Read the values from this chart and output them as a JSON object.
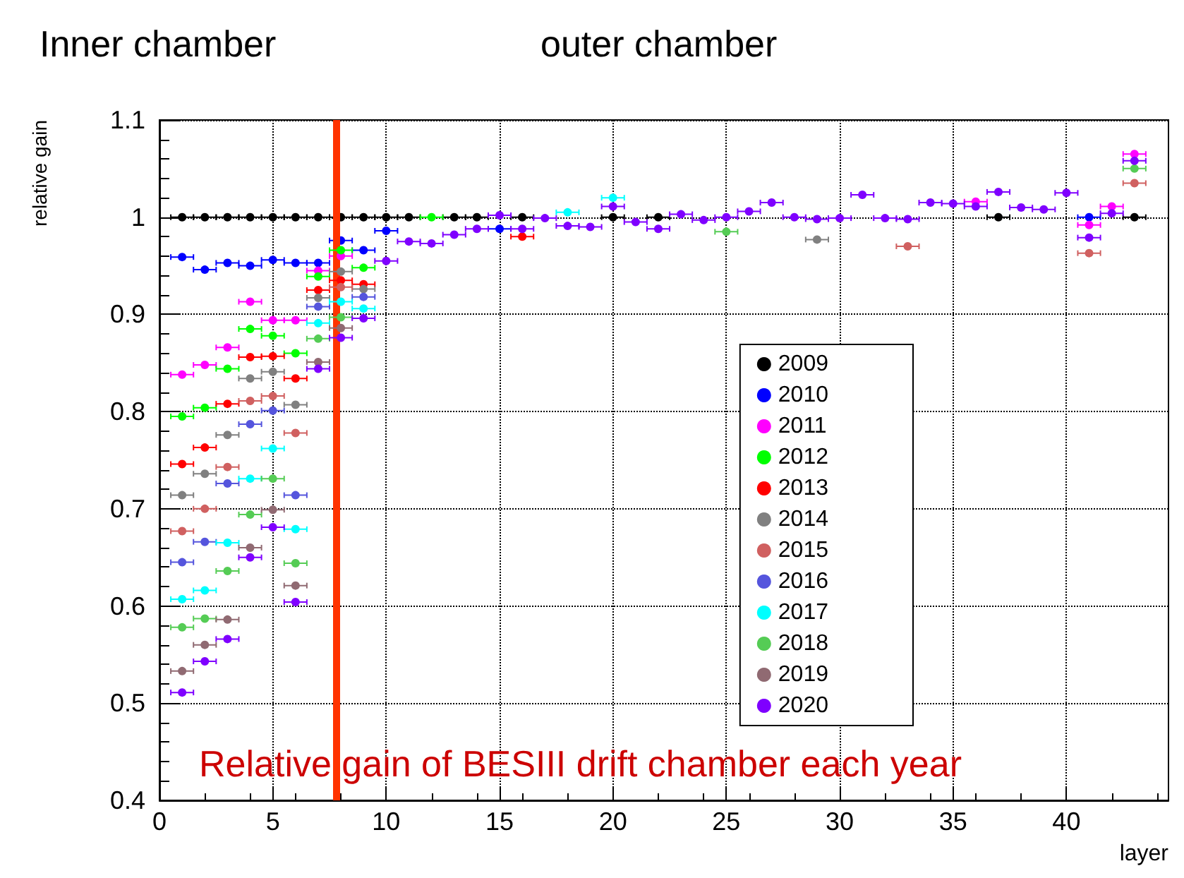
{
  "chart_data": {
    "type": "scatter",
    "annotations": [
      "Inner chamber",
      "outer chamber",
      "Relative gain of BESIII drift chamber each year"
    ],
    "xlabel": "layer",
    "ylabel": "relative gain",
    "x": [
      1,
      2,
      3,
      4,
      5,
      6,
      7,
      8,
      9,
      10,
      11,
      12,
      13,
      14,
      15,
      16,
      17,
      18,
      19,
      20,
      21,
      22,
      23,
      24,
      25,
      26,
      27,
      28,
      29,
      30,
      31,
      32,
      33,
      34,
      35,
      36,
      37,
      38,
      39,
      40,
      41,
      42,
      43
    ],
    "xlim": [
      0,
      44.5
    ],
    "xticks": [
      0,
      5,
      10,
      15,
      20,
      25,
      30,
      35,
      40
    ],
    "ylim": [
      0.4,
      1.1
    ],
    "yticks": [
      0.4,
      0.5,
      0.6,
      0.7,
      0.8,
      0.9,
      1,
      1.1
    ],
    "grid": true,
    "legend": "right",
    "marker": "circle",
    "ref_lines": [
      {
        "axis": "x",
        "value": 7.8,
        "color": "#ff3300"
      }
    ],
    "series": [
      {
        "name": "2009",
        "color": "#000000",
        "values": [
          1,
          1,
          1,
          1,
          1,
          1,
          1,
          1,
          1,
          1,
          1,
          null,
          1,
          1,
          null,
          1,
          null,
          null,
          null,
          1,
          null,
          1,
          null,
          null,
          null,
          null,
          null,
          null,
          null,
          null,
          null,
          null,
          null,
          null,
          null,
          null,
          1,
          null,
          null,
          null,
          null,
          null,
          1
        ],
        "xerrors": [
          0.5,
          0.5,
          0.5,
          0.5,
          0.5,
          0.5,
          0.5,
          0.5,
          0.5,
          0.5,
          0.5,
          null,
          0.5,
          0.5,
          null,
          0.5,
          null,
          null,
          null,
          0.5,
          null,
          0.5,
          null,
          null,
          null,
          null,
          null,
          null,
          null,
          null,
          null,
          null,
          null,
          null,
          null,
          null,
          0.5,
          null,
          null,
          null,
          null,
          null,
          0.5
        ]
      },
      {
        "name": "2010",
        "color": "#0000ff",
        "values": [
          0.959,
          0.946,
          0.953,
          0.95,
          0.956,
          0.953,
          0.953,
          0.976,
          0.966,
          0.986,
          null,
          null,
          null,
          null,
          0.988,
          null,
          null,
          null,
          null,
          null,
          null,
          null,
          null,
          null,
          null,
          null,
          null,
          null,
          null,
          null,
          null,
          null,
          null,
          null,
          null,
          null,
          null,
          null,
          null,
          null,
          1.0,
          null,
          null
        ],
        "xerrors": [
          0.5,
          0.5,
          0.5,
          0.5,
          0.5,
          0.5,
          0.5,
          0.5,
          0.5,
          0.5,
          null,
          null,
          null,
          null,
          0.5,
          null,
          null,
          null,
          null,
          null,
          null,
          null,
          null,
          null,
          null,
          null,
          null,
          null,
          null,
          null,
          null,
          null,
          null,
          null,
          null,
          null,
          null,
          null,
          null,
          null,
          0.5,
          null,
          null
        ]
      },
      {
        "name": "2011",
        "color": "#ff00ff",
        "values": [
          0.838,
          0.848,
          0.866,
          0.913,
          0.894,
          0.894,
          0.945,
          0.96,
          null,
          null,
          null,
          null,
          null,
          null,
          null,
          null,
          null,
          null,
          null,
          null,
          null,
          null,
          null,
          null,
          null,
          null,
          null,
          null,
          null,
          null,
          null,
          null,
          null,
          null,
          null,
          1.016,
          null,
          null,
          null,
          null,
          0.992,
          1.011,
          1.065
        ],
        "xerrors": [
          0.5,
          0.5,
          0.5,
          0.5,
          0.5,
          0.5,
          0.5,
          0.5,
          null,
          null,
          null,
          null,
          null,
          null,
          null,
          null,
          null,
          null,
          null,
          null,
          null,
          null,
          null,
          null,
          null,
          null,
          null,
          null,
          null,
          null,
          null,
          null,
          null,
          null,
          null,
          0.5,
          null,
          null,
          null,
          null,
          0.5,
          0.5,
          0.5
        ]
      },
      {
        "name": "2012",
        "color": "#00ff00",
        "values": [
          0.795,
          0.804,
          0.844,
          0.885,
          0.878,
          0.86,
          0.939,
          0.966,
          0.948,
          null,
          null,
          1.0,
          null,
          null,
          null,
          null,
          null,
          null,
          null,
          null,
          null,
          null,
          null,
          null,
          null,
          null,
          null,
          null,
          null,
          null,
          null,
          null,
          null,
          null,
          null,
          null,
          null,
          null,
          null,
          null,
          null,
          null,
          null
        ],
        "xerrors": [
          0.5,
          0.5,
          0.5,
          0.5,
          0.5,
          0.5,
          0.5,
          0.5,
          0.5,
          null,
          null,
          0.5,
          null,
          null,
          null,
          null,
          null,
          null,
          null,
          null,
          null,
          null,
          null,
          null,
          null,
          null,
          null,
          null,
          null,
          null,
          null,
          null,
          null,
          null,
          null,
          null,
          null,
          null,
          null,
          null,
          null,
          null,
          null
        ]
      },
      {
        "name": "2013",
        "color": "#ff0000",
        "values": [
          0.746,
          0.763,
          0.808,
          0.856,
          0.857,
          0.834,
          0.925,
          0.935,
          0.931,
          null,
          null,
          null,
          null,
          null,
          null,
          0.98,
          null,
          null,
          null,
          null,
          null,
          null,
          null,
          null,
          null,
          null,
          null,
          null,
          null,
          null,
          null,
          null,
          null,
          null,
          null,
          null,
          null,
          null,
          null,
          null,
          null,
          null,
          null
        ],
        "xerrors": [
          0.5,
          0.5,
          0.5,
          0.5,
          0.5,
          0.5,
          0.5,
          0.5,
          0.5,
          null,
          null,
          null,
          null,
          null,
          null,
          0.5,
          null,
          null,
          null,
          null,
          null,
          null,
          null,
          null,
          null,
          null,
          null,
          null,
          null,
          null,
          null,
          null,
          null,
          null,
          null,
          null,
          null,
          null,
          null,
          null,
          null,
          null,
          null
        ]
      },
      {
        "name": "2014",
        "color": "#808080",
        "values": [
          0.714,
          0.736,
          0.776,
          0.834,
          0.841,
          0.807,
          0.917,
          0.944,
          0.926,
          null,
          null,
          null,
          null,
          null,
          null,
          null,
          null,
          null,
          null,
          null,
          null,
          null,
          null,
          null,
          null,
          null,
          null,
          null,
          0.977,
          null,
          null,
          null,
          null,
          null,
          null,
          null,
          null,
          null,
          null,
          null,
          null,
          null,
          null
        ],
        "xerrors": [
          0.5,
          0.5,
          0.5,
          0.5,
          0.5,
          0.5,
          0.5,
          0.5,
          0.5,
          null,
          null,
          null,
          null,
          null,
          null,
          null,
          null,
          null,
          null,
          null,
          null,
          null,
          null,
          null,
          null,
          null,
          null,
          null,
          0.5,
          null,
          null,
          null,
          null,
          null,
          null,
          null,
          null,
          null,
          null,
          null,
          null,
          null,
          null
        ]
      },
      {
        "name": "2015",
        "color": "#d06060",
        "values": [
          0.677,
          0.7,
          0.743,
          0.811,
          0.816,
          0.778,
          null,
          0.928,
          null,
          null,
          null,
          null,
          null,
          null,
          null,
          null,
          null,
          null,
          null,
          null,
          null,
          null,
          null,
          null,
          null,
          null,
          null,
          null,
          null,
          null,
          null,
          null,
          0.97,
          null,
          null,
          null,
          null,
          null,
          null,
          null,
          0.963,
          null,
          1.035
        ],
        "xerrors": [
          0.5,
          0.5,
          0.5,
          0.5,
          0.5,
          0.5,
          null,
          0.5,
          null,
          null,
          null,
          null,
          null,
          null,
          null,
          null,
          null,
          null,
          null,
          null,
          null,
          null,
          null,
          null,
          null,
          null,
          null,
          null,
          null,
          null,
          null,
          null,
          0.5,
          null,
          null,
          null,
          null,
          null,
          null,
          null,
          0.5,
          null,
          0.5
        ]
      },
      {
        "name": "2016",
        "color": "#5555dd",
        "values": [
          0.645,
          0.666,
          0.726,
          0.787,
          0.801,
          0.714,
          0.908,
          null,
          0.918,
          null,
          null,
          null,
          null,
          null,
          null,
          null,
          null,
          null,
          null,
          null,
          null,
          null,
          null,
          null,
          null,
          null,
          null,
          null,
          null,
          null,
          null,
          null,
          null,
          null,
          null,
          null,
          null,
          null,
          null,
          null,
          null,
          null,
          null
        ],
        "xerrors": [
          0.5,
          0.5,
          0.5,
          0.5,
          0.5,
          0.5,
          0.5,
          null,
          0.5,
          null,
          null,
          null,
          null,
          null,
          null,
          null,
          null,
          null,
          null,
          null,
          null,
          null,
          null,
          null,
          null,
          null,
          null,
          null,
          null,
          null,
          null,
          null,
          null,
          null,
          null,
          null,
          null,
          null,
          null,
          null,
          null,
          null,
          null
        ]
      },
      {
        "name": "2017",
        "color": "#00ffff",
        "values": [
          0.607,
          0.616,
          0.665,
          0.731,
          0.762,
          0.679,
          0.891,
          0.913,
          0.906,
          null,
          null,
          null,
          null,
          null,
          null,
          null,
          null,
          1.005,
          null,
          1.02,
          null,
          null,
          null,
          null,
          null,
          null,
          null,
          null,
          null,
          null,
          null,
          null,
          null,
          null,
          null,
          null,
          null,
          null,
          null,
          null,
          null,
          null,
          null
        ],
        "xerrors": [
          0.5,
          0.5,
          0.5,
          0.5,
          0.5,
          0.5,
          0.5,
          0.5,
          0.5,
          null,
          null,
          null,
          null,
          null,
          null,
          null,
          null,
          0.5,
          null,
          0.5,
          null,
          null,
          null,
          null,
          null,
          null,
          null,
          null,
          null,
          null,
          null,
          null,
          null,
          null,
          null,
          null,
          null,
          null,
          null,
          null,
          null,
          null,
          null
        ]
      },
      {
        "name": "2018",
        "color": "#55cc55",
        "values": [
          0.578,
          0.587,
          0.636,
          0.694,
          0.731,
          0.644,
          0.875,
          0.897,
          null,
          null,
          null,
          null,
          null,
          null,
          null,
          null,
          null,
          null,
          null,
          null,
          null,
          null,
          null,
          null,
          0.985,
          null,
          null,
          null,
          null,
          null,
          null,
          null,
          null,
          null,
          null,
          null,
          null,
          null,
          null,
          null,
          null,
          null,
          1.05
        ],
        "xerrors": [
          0.5,
          0.5,
          0.5,
          0.5,
          0.5,
          0.5,
          0.5,
          0.5,
          null,
          null,
          null,
          null,
          null,
          null,
          null,
          null,
          null,
          null,
          null,
          null,
          null,
          null,
          null,
          null,
          0.5,
          null,
          null,
          null,
          null,
          null,
          null,
          null,
          null,
          null,
          null,
          null,
          null,
          null,
          null,
          null,
          null,
          null,
          0.5
        ]
      },
      {
        "name": "2019",
        "color": "#906a72",
        "values": [
          0.533,
          0.56,
          0.586,
          0.66,
          0.699,
          0.621,
          0.851,
          0.886,
          null,
          null,
          null,
          null,
          null,
          null,
          null,
          null,
          null,
          null,
          null,
          null,
          null,
          null,
          null,
          null,
          null,
          null,
          null,
          null,
          null,
          null,
          null,
          null,
          null,
          null,
          null,
          null,
          null,
          null,
          null,
          null,
          null,
          null,
          null
        ],
        "xerrors": [
          0.5,
          0.5,
          0.5,
          0.5,
          0.5,
          0.5,
          0.5,
          0.5,
          null,
          null,
          null,
          null,
          null,
          null,
          null,
          null,
          null,
          null,
          null,
          null,
          null,
          null,
          null,
          null,
          null,
          null,
          null,
          null,
          null,
          null,
          null,
          null,
          null,
          null,
          null,
          null,
          null,
          null,
          null,
          null,
          null,
          null,
          null
        ]
      },
      {
        "name": "2020",
        "color": "#7f00ff",
        "values": [
          0.511,
          0.543,
          0.566,
          0.65,
          0.681,
          0.604,
          0.844,
          0.876,
          0.896,
          0.955,
          0.975,
          0.973,
          0.982,
          0.988,
          1.002,
          0.988,
          0.999,
          0.991,
          0.99,
          1.011,
          0.995,
          0.988,
          1.003,
          0.997,
          1.0,
          1.006,
          1.015,
          1.0,
          0.998,
          0.999,
          1.023,
          0.999,
          0.998,
          1.015,
          1.014,
          1.011,
          1.026,
          1.01,
          1.008,
          1.025,
          0.979,
          1.004,
          1.058
        ],
        "xerrors": [
          0.5,
          0.5,
          0.5,
          0.5,
          0.5,
          0.5,
          0.5,
          0.5,
          0.5,
          0.5,
          0.5,
          0.5,
          0.5,
          0.5,
          0.5,
          0.5,
          0.5,
          0.5,
          0.5,
          0.5,
          0.5,
          0.5,
          0.5,
          0.5,
          0.5,
          0.5,
          0.5,
          0.5,
          0.5,
          0.5,
          0.5,
          0.5,
          0.5,
          0.5,
          0.5,
          0.5,
          0.5,
          0.5,
          0.5,
          0.5,
          0.5,
          0.5,
          0.5
        ]
      }
    ]
  }
}
